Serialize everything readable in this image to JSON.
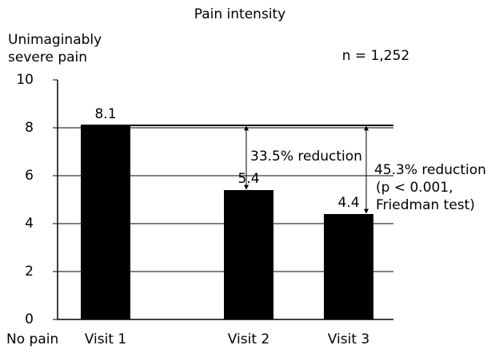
{
  "chart_data": {
    "type": "bar",
    "title": "Pain intensity",
    "y_top_label": [
      "Unimaginably",
      "severe pain"
    ],
    "y_bottom_label": "No pain",
    "sample_size": "n = 1,252",
    "categories": [
      "Visit 1",
      "Visit 2",
      "Visit 3"
    ],
    "values": [
      8.1,
      5.4,
      4.4
    ],
    "color": "#000000",
    "ylim": [
      0,
      10
    ],
    "yticks": [
      0,
      2,
      4,
      6,
      8,
      10
    ],
    "grid": true,
    "annotations": [
      "33.5% reduction",
      "45.3% reduction",
      "(p < 0.001,",
      "Friedman test)"
    ]
  }
}
